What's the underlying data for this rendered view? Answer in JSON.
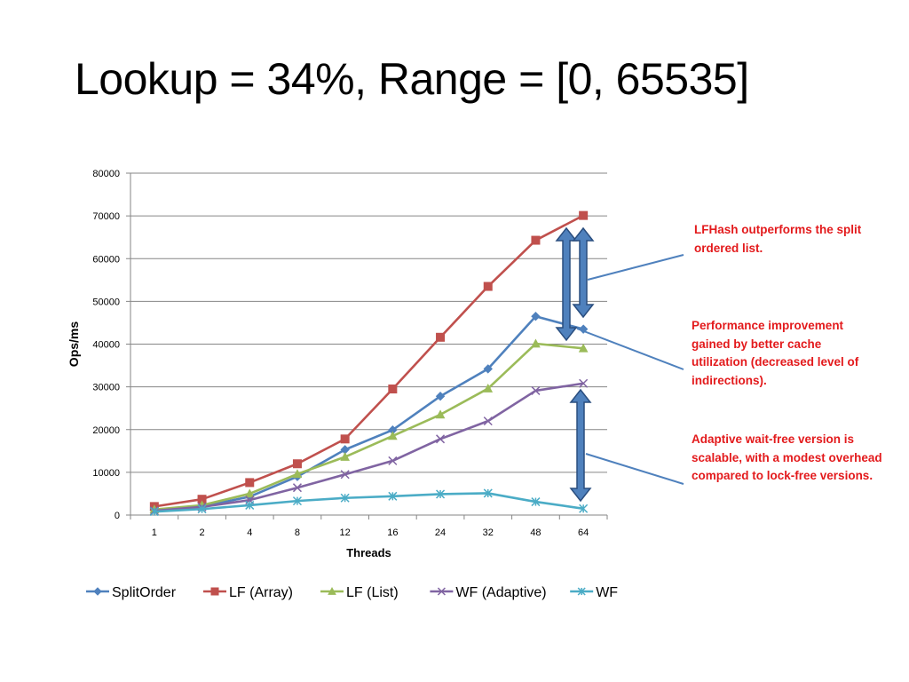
{
  "slide": {
    "title": "Lookup = 34%, Range = [0, 65535]"
  },
  "annotations": [
    "LFHash outperforms the split ordered list.",
    "Performance improvement gained by better cache utilization (decreased level of indirections).",
    "Adaptive wait-free version is scalable, with a modest overhead compared to lock-free versions."
  ],
  "colors": {
    "annotation_text": "#e31a1c",
    "arrow_fill": "#4f81bd",
    "arrow_stroke": "#2a4e7f",
    "callout_line": "#4f81bd"
  },
  "chart_data": {
    "type": "line",
    "title": "",
    "xlabel": "Threads",
    "ylabel": "Ops/ms",
    "categories": [
      "1",
      "2",
      "4",
      "8",
      "12",
      "16",
      "24",
      "32",
      "48",
      "64"
    ],
    "ylim": [
      0,
      80000
    ],
    "yticks": [
      "0",
      "10000",
      "20000",
      "30000",
      "40000",
      "50000",
      "60000",
      "70000",
      "80000"
    ],
    "grid": "horizontal",
    "legend": "bottom",
    "series": [
      {
        "name": "SplitOrder",
        "color": "#4f81bd",
        "marker": "diamond",
        "values": [
          1200,
          2000,
          4300,
          9000,
          15300,
          19900,
          27800,
          34200,
          46500,
          43500
        ]
      },
      {
        "name": "LF (Array)",
        "color": "#c0504d",
        "marker": "square",
        "values": [
          2000,
          3700,
          7600,
          12000,
          17800,
          29500,
          41600,
          53500,
          64300,
          70100
        ]
      },
      {
        "name": "LF (List)",
        "color": "#9bbb59",
        "marker": "triangle",
        "values": [
          1300,
          2300,
          5000,
          9600,
          13600,
          18500,
          23500,
          29600,
          40100,
          39000
        ]
      },
      {
        "name": "WF (Adaptive)",
        "color": "#8064a2",
        "marker": "x",
        "values": [
          1000,
          1900,
          3500,
          6400,
          9500,
          12700,
          17800,
          22000,
          29100,
          30800
        ]
      },
      {
        "name": "WF",
        "color": "#4bacc6",
        "marker": "star",
        "values": [
          800,
          1400,
          2300,
          3300,
          4000,
          4400,
          4900,
          5100,
          3100,
          1500
        ]
      }
    ]
  }
}
